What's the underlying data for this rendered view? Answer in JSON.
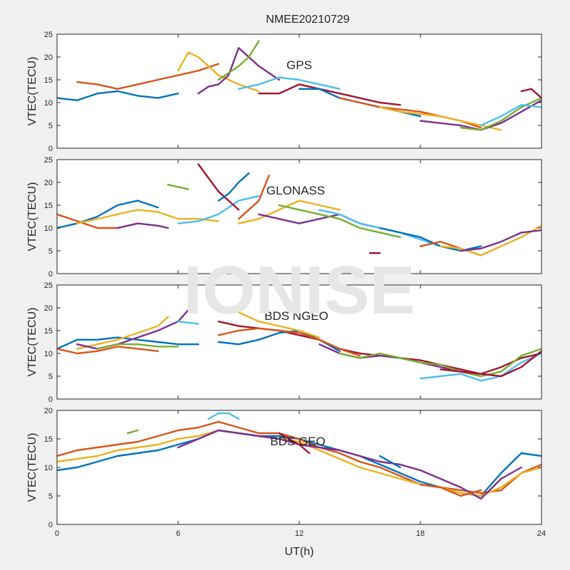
{
  "figure_title": "NMEE20210729",
  "watermark": "IONISE",
  "xlabel": "UT(h)",
  "palette": [
    "#0072BD",
    "#D95319",
    "#EDB120",
    "#7E2F8E",
    "#77AC30",
    "#4DBEEE",
    "#A2142F"
  ],
  "chart_data": [
    {
      "type": "line",
      "title": "GPS",
      "ylabel": "VTEC(TECU)",
      "xlim": [
        0,
        24
      ],
      "ylim": [
        0,
        25
      ],
      "xticks": [
        0,
        6,
        12,
        18,
        24
      ],
      "yticks": [
        0,
        5,
        10,
        15,
        20,
        25
      ],
      "series": [
        {
          "x": [
            0,
            1,
            2,
            3,
            4,
            5,
            6
          ],
          "y": [
            11,
            10.5,
            12,
            12.5,
            11.5,
            11,
            12
          ]
        },
        {
          "x": [
            1,
            2,
            3,
            4,
            5,
            6,
            7,
            8
          ],
          "y": [
            14.5,
            14,
            13,
            14,
            15,
            16,
            17,
            18.5
          ]
        },
        {
          "x": [
            6,
            6.5,
            7,
            7.5,
            8,
            9,
            10
          ],
          "y": [
            17,
            21,
            20,
            18,
            16,
            14,
            12.5
          ]
        },
        {
          "x": [
            7,
            7.5,
            8,
            8.5,
            9,
            10,
            11
          ],
          "y": [
            12,
            13.5,
            14,
            16,
            22,
            18,
            15
          ]
        },
        {
          "x": [
            8,
            9,
            9.5,
            10
          ],
          "y": [
            15,
            18,
            20,
            23.5
          ]
        },
        {
          "x": [
            9,
            10,
            11,
            12,
            13,
            14
          ],
          "y": [
            13,
            14,
            15.5,
            15,
            14,
            13
          ]
        },
        {
          "x": [
            10,
            11,
            12,
            13,
            14,
            15,
            16,
            17
          ],
          "y": [
            12,
            12,
            14,
            13,
            12,
            11,
            10,
            9.5
          ]
        },
        {
          "x": [
            12,
            13,
            14,
            15,
            16,
            17,
            18
          ],
          "y": [
            13,
            13,
            11,
            10,
            9,
            8,
            7
          ]
        },
        {
          "x": [
            14,
            15,
            16,
            17,
            18,
            19,
            20,
            21
          ],
          "y": [
            11,
            10,
            9,
            8.5,
            8,
            7,
            6,
            4.5
          ]
        },
        {
          "x": [
            16,
            17,
            18,
            19,
            20,
            21,
            22
          ],
          "y": [
            9,
            8,
            7.5,
            7,
            6,
            5,
            4
          ]
        },
        {
          "x": [
            18,
            19,
            20,
            21,
            22,
            23,
            24
          ],
          "y": [
            6,
            5.5,
            5,
            4,
            5.5,
            8,
            10.5
          ]
        },
        {
          "x": [
            20,
            21,
            22,
            23,
            24
          ],
          "y": [
            4.5,
            4,
            6,
            9,
            11
          ]
        },
        {
          "x": [
            21,
            22,
            23,
            24
          ],
          "y": [
            5,
            7,
            9.5,
            9
          ]
        },
        {
          "x": [
            23,
            23.5,
            24
          ],
          "y": [
            12.5,
            13,
            11
          ]
        }
      ]
    },
    {
      "type": "line",
      "title": "GLONASS",
      "ylabel": "VTEC(TECU)",
      "xlim": [
        0,
        24
      ],
      "ylim": [
        0,
        25
      ],
      "xticks": [
        0,
        6,
        12,
        18,
        24
      ],
      "yticks": [
        0,
        5,
        10,
        15,
        20,
        25
      ],
      "series": [
        {
          "x": [
            0,
            1,
            2,
            3,
            4,
            5
          ],
          "y": [
            10,
            11,
            12.5,
            15,
            16,
            14.5
          ]
        },
        {
          "x": [
            0,
            1,
            2,
            3,
            4
          ],
          "y": [
            13,
            11.5,
            10,
            10,
            11
          ]
        },
        {
          "x": [
            1,
            2,
            3,
            4,
            5,
            6,
            7,
            8
          ],
          "y": [
            11,
            12,
            13,
            14,
            13.5,
            12,
            12,
            11.5
          ]
        },
        {
          "x": [
            3,
            4,
            5,
            5.5
          ],
          "y": [
            10,
            11,
            10.5,
            10
          ]
        },
        {
          "x": [
            5.5,
            6,
            6.5
          ],
          "y": [
            19.5,
            19,
            18.5
          ]
        },
        {
          "x": [
            6,
            7,
            8,
            9,
            10
          ],
          "y": [
            11,
            11.5,
            13,
            16,
            17
          ]
        },
        {
          "x": [
            7,
            7.5,
            8,
            8.5,
            9
          ],
          "y": [
            24,
            21,
            18,
            16,
            14
          ]
        },
        {
          "x": [
            8,
            8.5,
            9,
            9.5
          ],
          "y": [
            16,
            17.5,
            20,
            22
          ]
        },
        {
          "x": [
            9,
            10,
            10.5
          ],
          "y": [
            12,
            16,
            21.5
          ]
        },
        {
          "x": [
            9,
            10,
            11,
            12,
            13,
            14
          ],
          "y": [
            11,
            12,
            14,
            16,
            15,
            14
          ]
        },
        {
          "x": [
            10,
            11,
            12,
            13,
            14,
            15,
            16
          ],
          "y": [
            13,
            12,
            11,
            12,
            13,
            11,
            10
          ]
        },
        {
          "x": [
            11,
            12,
            13,
            14,
            15,
            16,
            17
          ],
          "y": [
            15,
            14,
            13,
            12,
            10,
            9,
            8
          ]
        },
        {
          "x": [
            13,
            14,
            15,
            16,
            17,
            18,
            19
          ],
          "y": [
            14,
            13,
            11,
            10,
            9,
            7.5,
            6
          ]
        },
        {
          "x": [
            15.5,
            16
          ],
          "y": [
            4.5,
            4.5
          ]
        },
        {
          "x": [
            16,
            17,
            18,
            19,
            20,
            21
          ],
          "y": [
            10,
            9,
            8,
            6,
            5,
            6
          ]
        },
        {
          "x": [
            18,
            19,
            20,
            21
          ],
          "y": [
            6,
            7,
            5.5,
            4
          ]
        },
        {
          "x": [
            19,
            20,
            21,
            22,
            23,
            24
          ],
          "y": [
            6,
            5.5,
            4,
            6,
            8,
            10.5
          ]
        },
        {
          "x": [
            20,
            21,
            22,
            23,
            24
          ],
          "y": [
            5,
            5.5,
            7,
            9,
            9.5
          ]
        }
      ]
    },
    {
      "type": "line",
      "title": "BDS NGEO",
      "ylabel": "VTEC(TECU)",
      "xlim": [
        0,
        24
      ],
      "ylim": [
        0,
        25
      ],
      "xticks": [
        0,
        6,
        12,
        18,
        24
      ],
      "yticks": [
        0,
        5,
        10,
        15,
        20,
        25
      ],
      "series": [
        {
          "x": [
            0,
            1,
            2,
            3,
            4,
            5,
            6,
            7
          ],
          "y": [
            11,
            13,
            13,
            13.5,
            13,
            12.5,
            12,
            12
          ]
        },
        {
          "x": [
            0,
            1,
            2,
            3,
            4,
            5
          ],
          "y": [
            11,
            10,
            10.5,
            11.5,
            11,
            10.5
          ]
        },
        {
          "x": [
            1,
            2,
            3,
            4,
            5,
            5.5
          ],
          "y": [
            11,
            12,
            13,
            14.5,
            16,
            18
          ]
        },
        {
          "x": [
            1,
            2,
            3,
            4,
            5,
            6,
            6.5
          ],
          "y": [
            12,
            11,
            12,
            13.5,
            15,
            17,
            19.5
          ]
        },
        {
          "x": [
            2,
            3,
            4,
            5,
            6
          ],
          "y": [
            11,
            12,
            12,
            11.5,
            11.5
          ]
        },
        {
          "x": [
            6,
            7
          ],
          "y": [
            17,
            16.5
          ]
        },
        {
          "x": [
            8,
            9,
            10,
            11,
            12,
            13,
            14,
            15,
            16,
            17,
            18,
            19,
            20,
            21,
            22,
            23,
            24
          ],
          "y": [
            17,
            16,
            15.5,
            15,
            14,
            13,
            11,
            10,
            9.5,
            9,
            8.5,
            7.5,
            6.5,
            5.5,
            7,
            9,
            10
          ]
        },
        {
          "x": [
            8,
            9,
            10,
            11,
            12,
            13,
            14
          ],
          "y": [
            12.5,
            12,
            13,
            14.5,
            15,
            13,
            10.5
          ]
        },
        {
          "x": [
            8,
            9,
            10,
            11,
            12,
            13,
            14,
            15
          ],
          "y": [
            14,
            15,
            15.5,
            15,
            14.5,
            13,
            11,
            9.5
          ]
        },
        {
          "x": [
            9,
            10,
            11,
            12,
            13
          ],
          "y": [
            19,
            17,
            16,
            15,
            13.5
          ]
        },
        {
          "x": [
            13,
            14,
            15,
            16,
            17,
            18,
            19,
            20,
            21
          ],
          "y": [
            12,
            10,
            9,
            9.5,
            9,
            8,
            7,
            6,
            5
          ]
        },
        {
          "x": [
            14,
            15,
            16,
            17,
            18,
            19,
            20,
            21,
            22,
            23,
            24
          ],
          "y": [
            10,
            9,
            10,
            9,
            8,
            7.5,
            6,
            5,
            6,
            9.5,
            11
          ]
        },
        {
          "x": [
            18,
            19,
            20,
            21,
            22,
            23,
            24
          ],
          "y": [
            4.5,
            5,
            5.5,
            4,
            5,
            8,
            10
          ]
        },
        {
          "x": [
            19,
            20,
            21,
            22,
            23,
            24
          ],
          "y": [
            6.5,
            6,
            5.5,
            5,
            7,
            10.5
          ]
        }
      ]
    },
    {
      "type": "line",
      "title": "BDS GEO",
      "ylabel": "VTEC(TECU)",
      "xlim": [
        0,
        24
      ],
      "ylim": [
        0,
        20
      ],
      "xticks": [
        0,
        6,
        12,
        18,
        24
      ],
      "yticks": [
        0,
        5,
        10,
        15,
        20
      ],
      "series": [
        {
          "x": [
            0,
            1,
            2,
            3,
            4,
            5,
            6,
            7,
            8,
            9,
            10,
            11,
            12,
            13,
            14,
            15,
            16,
            17,
            18,
            19,
            20,
            21,
            22,
            23,
            24
          ],
          "y": [
            9.5,
            10,
            11,
            12,
            12.5,
            13,
            14,
            15,
            16.5,
            16,
            15.5,
            15.5,
            15,
            14,
            13,
            12,
            10.5,
            9,
            7.5,
            6.5,
            5.5,
            5,
            9,
            12.5,
            12
          ]
        },
        {
          "x": [
            0,
            1,
            2,
            3,
            4,
            5,
            6,
            7,
            8,
            9,
            10,
            11,
            12,
            13,
            14,
            15,
            16,
            17,
            18,
            19,
            20,
            21,
            22,
            23,
            24
          ],
          "y": [
            12,
            13,
            13.5,
            14,
            14.5,
            15.5,
            16.5,
            17,
            18,
            17,
            16,
            16,
            15,
            13.5,
            12.5,
            11,
            10,
            8.5,
            7,
            6.5,
            6,
            5.5,
            6,
            9,
            10.5
          ]
        },
        {
          "x": [
            0,
            1,
            2,
            3,
            4,
            5,
            6,
            7,
            8,
            9,
            10,
            11,
            12,
            13,
            14,
            15,
            16,
            17,
            18,
            19,
            20,
            21,
            22,
            23,
            24
          ],
          "y": [
            11,
            11.5,
            12,
            13,
            13.5,
            14,
            15,
            15.5,
            16.5,
            16,
            15.5,
            15,
            14.5,
            13,
            11.5,
            10,
            9,
            8,
            7,
            6.5,
            5.5,
            5,
            6.5,
            9,
            10
          ]
        },
        {
          "x": [
            6,
            7,
            8,
            9,
            10,
            11,
            12,
            13,
            14,
            15,
            16,
            17,
            18,
            19,
            20,
            21,
            22,
            23
          ],
          "y": [
            13.5,
            15,
            16.5,
            16,
            15.5,
            15,
            14,
            13.5,
            13,
            12,
            11,
            10.5,
            9.5,
            8,
            6.5,
            4.5,
            8,
            10
          ]
        },
        {
          "x": [
            3.5,
            4
          ],
          "y": [
            16,
            16.5
          ]
        },
        {
          "x": [
            7.5,
            8,
            8.5,
            9
          ],
          "y": [
            18.5,
            19.5,
            19.5,
            18.5
          ]
        },
        {
          "x": [
            11,
            12,
            12.5
          ],
          "y": [
            16,
            14,
            12.5
          ]
        },
        {
          "x": [
            16,
            17
          ],
          "y": [
            12,
            10
          ]
        },
        {
          "x": [
            18,
            19,
            20,
            21
          ],
          "y": [
            7,
            6.5,
            5,
            6
          ]
        }
      ]
    }
  ]
}
